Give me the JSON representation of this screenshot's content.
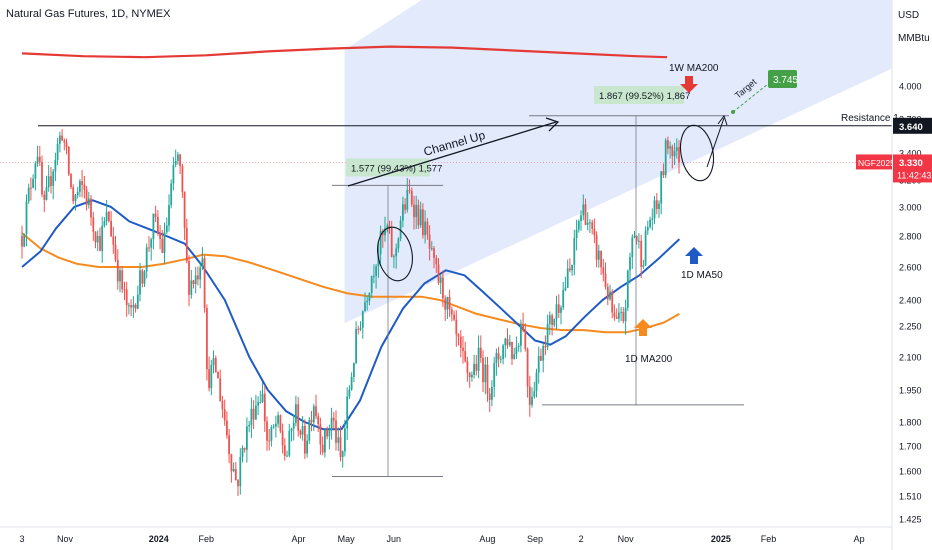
{
  "header": {
    "title": "Natural Gas Futures, 1D, NYMEX"
  },
  "currency": "USD",
  "unit": "MMBtu",
  "chart_data": {
    "type": "candlestick",
    "symbol": "NGF2025",
    "last_price": "3.330",
    "countdown": "11:42:43",
    "y_ticks": [
      {
        "value": 1.425,
        "label": "1.425"
      },
      {
        "value": 1.51,
        "label": "1.510"
      },
      {
        "value": 1.6,
        "label": "1.600"
      },
      {
        "value": 1.7,
        "label": "1.700"
      },
      {
        "value": 1.8,
        "label": "1.800"
      },
      {
        "value": 1.95,
        "label": "1.950"
      },
      {
        "value": 2.1,
        "label": "2.100"
      },
      {
        "value": 2.25,
        "label": "2.250"
      },
      {
        "value": 2.4,
        "label": "2.400"
      },
      {
        "value": 2.6,
        "label": "2.600"
      },
      {
        "value": 2.8,
        "label": "2.800"
      },
      {
        "value": 3.0,
        "label": "3.000"
      },
      {
        "value": 3.2,
        "label": "3.200"
      },
      {
        "value": 3.4,
        "label": "3.400"
      },
      {
        "value": 3.7,
        "label": "3.700"
      },
      {
        "value": 4.0,
        "label": "4.000"
      }
    ],
    "x_ticks": [
      {
        "day": 0,
        "label": "3"
      },
      {
        "day": 28,
        "label": "Nov"
      },
      {
        "day": 89,
        "label": "2024"
      },
      {
        "day": 120,
        "label": "Feb"
      },
      {
        "day": 180,
        "label": "Apr"
      },
      {
        "day": 211,
        "label": "May"
      },
      {
        "day": 242,
        "label": "Jun"
      },
      {
        "day": 303,
        "label": "Aug"
      },
      {
        "day": 334,
        "label": "Sep"
      },
      {
        "day": 364,
        "label": "2"
      },
      {
        "day": 393,
        "label": "Nov"
      },
      {
        "day": 455,
        "label": "2025"
      },
      {
        "day": 486,
        "label": "Feb"
      },
      {
        "day": 545,
        "label": "Ap"
      }
    ],
    "ohlc_anchors": [
      [
        0,
        2.8
      ],
      [
        6,
        3.2
      ],
      [
        10,
        3.45
      ],
      [
        14,
        2.95
      ],
      [
        20,
        3.3
      ],
      [
        26,
        3.6
      ],
      [
        33,
        3.05
      ],
      [
        40,
        3.15
      ],
      [
        50,
        2.75
      ],
      [
        56,
        2.95
      ],
      [
        63,
        2.55
      ],
      [
        70,
        2.3
      ],
      [
        78,
        2.55
      ],
      [
        86,
        2.9
      ],
      [
        92,
        2.7
      ],
      [
        98,
        3.2
      ],
      [
        102,
        3.4
      ],
      [
        108,
        2.5
      ],
      [
        114,
        2.55
      ],
      [
        118,
        2.75
      ],
      [
        120,
        2.0
      ],
      [
        126,
        2.05
      ],
      [
        131,
        1.85
      ],
      [
        136,
        1.65
      ],
      [
        140,
        1.55
      ],
      [
        144,
        1.7
      ],
      [
        150,
        1.85
      ],
      [
        156,
        1.95
      ],
      [
        160,
        1.7
      ],
      [
        166,
        1.8
      ],
      [
        172,
        1.65
      ],
      [
        178,
        1.85
      ],
      [
        184,
        1.7
      ],
      [
        190,
        1.9
      ],
      [
        196,
        1.7
      ],
      [
        202,
        1.82
      ],
      [
        208,
        1.62
      ],
      [
        212,
        1.9
      ],
      [
        218,
        2.2
      ],
      [
        226,
        2.5
      ],
      [
        233,
        2.75
      ],
      [
        238,
        2.85
      ],
      [
        242,
        2.62
      ],
      [
        246,
        2.9
      ],
      [
        252,
        3.1
      ],
      [
        256,
        3.0
      ],
      [
        262,
        2.85
      ],
      [
        268,
        2.6
      ],
      [
        274,
        2.45
      ],
      [
        282,
        2.2
      ],
      [
        290,
        2.0
      ],
      [
        298,
        2.1
      ],
      [
        304,
        1.95
      ],
      [
        310,
        2.1
      ],
      [
        316,
        2.2
      ],
      [
        320,
        2.1
      ],
      [
        326,
        2.3
      ],
      [
        330,
        1.9
      ],
      [
        334,
        2.0
      ],
      [
        340,
        2.2
      ],
      [
        346,
        2.3
      ],
      [
        352,
        2.45
      ],
      [
        358,
        2.6
      ],
      [
        362,
        2.9
      ],
      [
        366,
        3.0
      ],
      [
        372,
        2.75
      ],
      [
        376,
        2.65
      ],
      [
        380,
        2.5
      ],
      [
        386,
        2.25
      ],
      [
        392,
        2.3
      ],
      [
        398,
        2.85
      ],
      [
        404,
        2.65
      ],
      [
        408,
        2.9
      ],
      [
        414,
        3.0
      ],
      [
        420,
        3.5
      ],
      [
        424,
        3.45
      ],
      [
        428,
        3.33
      ]
    ],
    "ma50": [
      [
        0,
        2.6
      ],
      [
        12,
        2.7
      ],
      [
        22,
        2.85
      ],
      [
        34,
        3.0
      ],
      [
        46,
        3.05
      ],
      [
        58,
        3.0
      ],
      [
        70,
        2.9
      ],
      [
        82,
        2.85
      ],
      [
        94,
        2.8
      ],
      [
        106,
        2.75
      ],
      [
        118,
        2.6
      ],
      [
        132,
        2.4
      ],
      [
        148,
        2.1
      ],
      [
        160,
        1.95
      ],
      [
        172,
        1.85
      ],
      [
        184,
        1.8
      ],
      [
        196,
        1.77
      ],
      [
        208,
        1.77
      ],
      [
        220,
        1.9
      ],
      [
        234,
        2.15
      ],
      [
        248,
        2.35
      ],
      [
        262,
        2.5
      ],
      [
        276,
        2.58
      ],
      [
        288,
        2.55
      ],
      [
        300,
        2.45
      ],
      [
        312,
        2.35
      ],
      [
        324,
        2.25
      ],
      [
        334,
        2.18
      ],
      [
        344,
        2.16
      ],
      [
        354,
        2.2
      ],
      [
        366,
        2.3
      ],
      [
        378,
        2.4
      ],
      [
        390,
        2.48
      ],
      [
        402,
        2.55
      ],
      [
        414,
        2.65
      ],
      [
        428,
        2.78
      ]
    ],
    "ma200": [
      [
        0,
        2.82
      ],
      [
        12,
        2.72
      ],
      [
        24,
        2.66
      ],
      [
        36,
        2.62
      ],
      [
        50,
        2.6
      ],
      [
        64,
        2.6
      ],
      [
        78,
        2.6
      ],
      [
        92,
        2.62
      ],
      [
        106,
        2.65
      ],
      [
        118,
        2.68
      ],
      [
        132,
        2.67
      ],
      [
        148,
        2.63
      ],
      [
        164,
        2.58
      ],
      [
        180,
        2.53
      ],
      [
        196,
        2.48
      ],
      [
        212,
        2.44
      ],
      [
        228,
        2.42
      ],
      [
        244,
        2.42
      ],
      [
        260,
        2.42
      ],
      [
        272,
        2.4
      ],
      [
        284,
        2.36
      ],
      [
        296,
        2.32
      ],
      [
        310,
        2.29
      ],
      [
        324,
        2.26
      ],
      [
        338,
        2.24
      ],
      [
        352,
        2.23
      ],
      [
        366,
        2.23
      ],
      [
        380,
        2.22
      ],
      [
        394,
        2.22
      ],
      [
        406,
        2.24
      ],
      [
        418,
        2.27
      ],
      [
        428,
        2.32
      ]
    ],
    "weekly_ma200": [
      [
        0,
        4.34
      ],
      [
        40,
        4.31
      ],
      [
        80,
        4.3
      ],
      [
        120,
        4.32
      ],
      [
        160,
        4.36
      ],
      [
        200,
        4.39
      ],
      [
        240,
        4.41
      ],
      [
        280,
        4.4
      ],
      [
        320,
        4.37
      ],
      [
        360,
        4.34
      ],
      [
        400,
        4.31
      ],
      [
        420,
        4.3
      ]
    ],
    "annotations": {
      "channel_label": "Channel Up",
      "resistance_label": "Resistance 1",
      "resistance_value": "3.640",
      "measure1_label": "1.577 (99.43%) 1,577",
      "measure2_label": "1.867 (99.52%) 1,867",
      "target_label": "Target",
      "target_value": "3.745",
      "ma200_weekly_label": "1W MA200",
      "ma50_daily_label": "1D MA50",
      "ma200_daily_label": "1D MA200"
    },
    "colors": {
      "up": "#26a69a",
      "down": "#ef5350",
      "ma50": "#1e5bc6",
      "ma200": "#f58a1f",
      "weekly_ma200": "#e53935",
      "channel_fill": "#dde6fb",
      "target_box": "#43a047",
      "price_tag": "#f23645",
      "resistance_tag": "#131722"
    }
  }
}
